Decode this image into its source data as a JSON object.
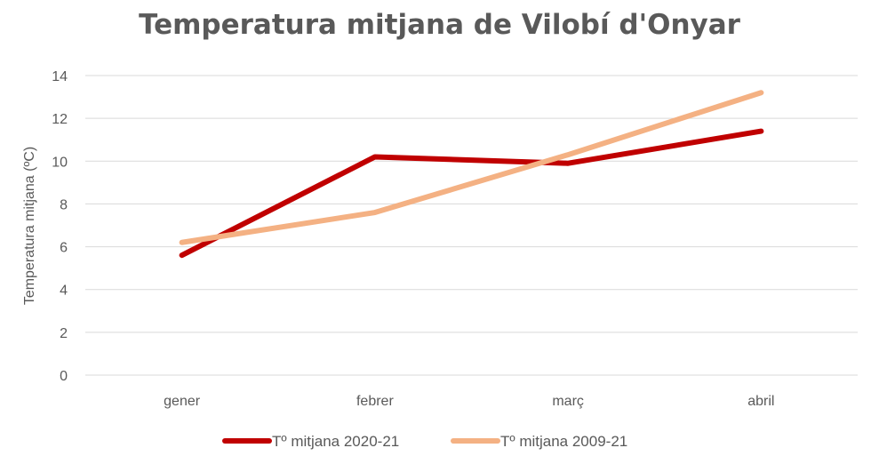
{
  "chart_data": {
    "type": "line",
    "title": "Temperatura mitjana de Vilobí d'Onyar",
    "xlabel": "",
    "ylabel": "Temperatura mitjana (ºC)",
    "categories": [
      "gener",
      "febrer",
      "març",
      "abril"
    ],
    "ylim": [
      0,
      14
    ],
    "yticks": [
      0,
      2,
      4,
      6,
      8,
      10,
      12,
      14
    ],
    "grid": true,
    "legend_position": "bottom",
    "series": [
      {
        "name": "Tº mitjana 2020-21",
        "color": "#C00000",
        "values": [
          5.6,
          10.2,
          9.9,
          11.4
        ]
      },
      {
        "name": "Tº mitjana 2009-21",
        "color": "#F4B183",
        "values": [
          6.2,
          7.6,
          10.3,
          13.2
        ]
      }
    ]
  }
}
